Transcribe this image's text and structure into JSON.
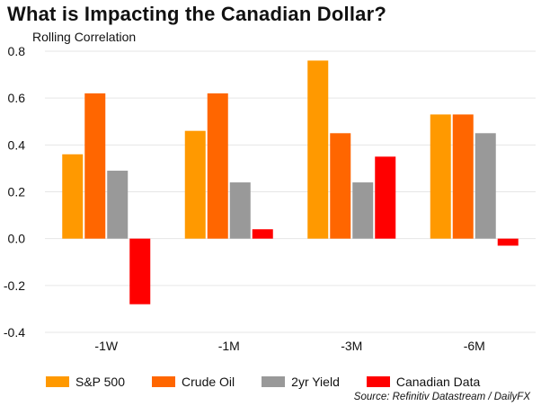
{
  "title": "What is Impacting the Canadian Dollar?",
  "subtitle": "Rolling Correlation",
  "source": "Source: Refinitiv Datastream / DailyFX",
  "chart_data": {
    "type": "bar",
    "title": "What is Impacting the Canadian Dollar?",
    "ylabel": "Rolling Correlation",
    "xlabel": "",
    "categories": [
      "-1W",
      "-1M",
      "-3M",
      "-6M"
    ],
    "ylim": [
      -0.4,
      0.8
    ],
    "yticks": [
      0.8,
      0.6,
      0.4,
      0.2,
      0.0,
      -0.2,
      -0.4
    ],
    "ytick_labels": [
      "0.8",
      "0.6",
      "0.4",
      "0.2",
      "0.0",
      "-0.2",
      "-0.4"
    ],
    "grid": true,
    "legend_position": "bottom",
    "series": [
      {
        "name": "S&P 500",
        "color": "#FF9900",
        "values": [
          0.36,
          0.46,
          0.76,
          0.53
        ]
      },
      {
        "name": "Crude Oil",
        "color": "#FF6600",
        "values": [
          0.62,
          0.62,
          0.45,
          0.53
        ]
      },
      {
        "name": "2yr Yield",
        "color": "#999999",
        "values": [
          0.29,
          0.24,
          0.24,
          0.45
        ]
      },
      {
        "name": "Canadian Data",
        "color": "#FF0000",
        "values": [
          -0.28,
          0.04,
          0.35,
          -0.03
        ]
      }
    ]
  }
}
